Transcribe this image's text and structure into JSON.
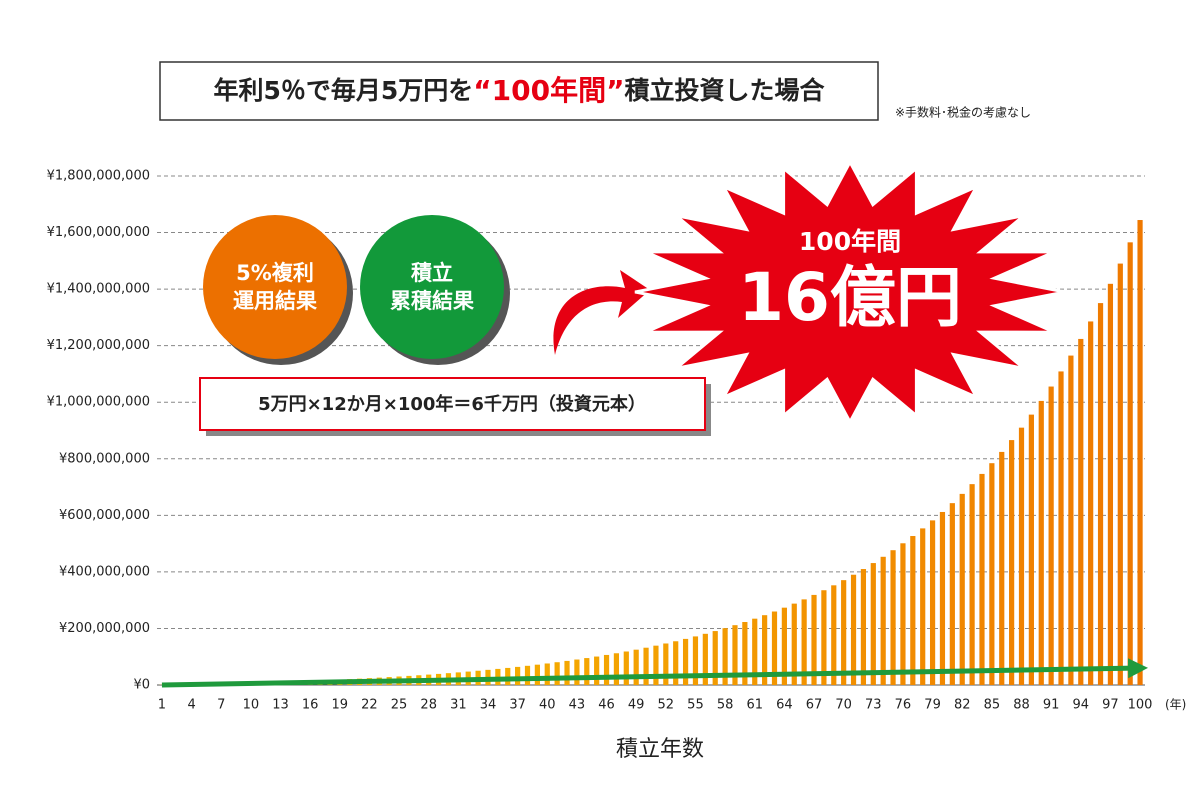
{
  "chart_data": {
    "type": "bar",
    "title_parts": [
      "年利5％で毎月5万円を",
      "“100年間”",
      "積立投資した場合"
    ],
    "note": "※手数料･税金の考慮なし",
    "circles": [
      {
        "lines": [
          "5%複利",
          "運用結果"
        ],
        "color": "#ec7000"
      },
      {
        "lines": [
          "積立",
          "累積結果"
        ],
        "color": "#12993a"
      }
    ],
    "formula": "5万円×12か月×100年＝6千万円（投資元本）",
    "burst": {
      "lines": [
        "100年間",
        "16億円"
      ],
      "color": "#e60012"
    },
    "xlabel": "積立年数",
    "xunit": "(年)",
    "colors": [
      "#f7c800",
      "#ef7800"
    ],
    "x": [
      1,
      2,
      3,
      4,
      5,
      6,
      7,
      8,
      9,
      10,
      11,
      12,
      13,
      14,
      15,
      16,
      17,
      18,
      19,
      20,
      21,
      22,
      23,
      24,
      25,
      26,
      27,
      28,
      29,
      30,
      31,
      32,
      33,
      34,
      35,
      36,
      37,
      38,
      39,
      40,
      41,
      42,
      43,
      44,
      45,
      46,
      47,
      48,
      49,
      50,
      51,
      52,
      53,
      54,
      55,
      56,
      57,
      58,
      59,
      60,
      61,
      62,
      63,
      64,
      65,
      66,
      67,
      68,
      69,
      70,
      71,
      72,
      73,
      74,
      75,
      76,
      77,
      78,
      79,
      80,
      81,
      82,
      83,
      84,
      85,
      86,
      87,
      88,
      89,
      90,
      91,
      92,
      93,
      94,
      95,
      96,
      97,
      98,
      99,
      100
    ],
    "values": [
      630000,
      1290000,
      1990000,
      2720000,
      3480000,
      4290000,
      5130000,
      6020000,
      6950000,
      7920000,
      8950000,
      10030000,
      11160000,
      12350000,
      13590000,
      14900000,
      16280000,
      17720000,
      19240000,
      20830000,
      22500000,
      24260000,
      26100000,
      28040000,
      30070000,
      32200000,
      34440000,
      36790000,
      39260000,
      41860000,
      44580000,
      47440000,
      50440000,
      53590000,
      56900000,
      60380000,
      64030000,
      67860000,
      71880000,
      76100000,
      80540000,
      85200000,
      90090000,
      95220000,
      100610000,
      106270000,
      112220000,
      118460000,
      124910000,
      131890000,
      139110000,
      146800000,
      154660000,
      163030000,
      171810000,
      181030000,
      190710000,
      200880000,
      211550000,
      222760000,
      234530000,
      246880000,
      259860000,
      273480000,
      287780000,
      302800000,
      318570000,
      335130000,
      352520000,
      370770000,
      389940000,
      410070000,
      431200000,
      453390000,
      476690000,
      501160000,
      526840000,
      553820000,
      582140000,
      611870000,
      643100000,
      675880000,
      710310000,
      746450000,
      784400000,
      824260000,
      866100000,
      910030000,
      956160000,
      1004600000,
      1055460000,
      1108870000,
      1164940000,
      1223820000,
      1285640000,
      1350550000,
      1418710000,
      1490270000,
      1565420000,
      1644320000
    ],
    "principal": {
      "color": "#1f9a3c",
      "x": [
        1,
        100
      ],
      "values": [
        0,
        60000000
      ]
    },
    "xlim": [
      0.5,
      100.5
    ],
    "xticks": [
      1,
      4,
      7,
      10,
      13,
      16,
      19,
      22,
      25,
      28,
      31,
      34,
      37,
      40,
      43,
      46,
      49,
      52,
      55,
      58,
      61,
      64,
      67,
      70,
      73,
      76,
      79,
      82,
      85,
      88,
      91,
      94,
      97,
      100
    ],
    "ylim": [
      0,
      1800000000
    ],
    "yticks": [
      {
        "value": 0,
        "label": "¥0"
      },
      {
        "value": 200000000,
        "label": "¥200,000,000"
      },
      {
        "value": 400000000,
        "label": "¥400,000,000"
      },
      {
        "value": 600000000,
        "label": "¥600,000,000"
      },
      {
        "value": 800000000,
        "label": "¥800,000,000"
      },
      {
        "value": 1000000000,
        "label": "¥1,000,000,000"
      },
      {
        "value": 1200000000,
        "label": "¥1,200,000,000"
      },
      {
        "value": 1400000000,
        "label": "¥1,400,000,000"
      },
      {
        "value": 1600000000,
        "label": "¥1,600,000,000"
      },
      {
        "value": 1800000000,
        "label": "¥1,800,000,000"
      }
    ],
    "grid": true
  }
}
